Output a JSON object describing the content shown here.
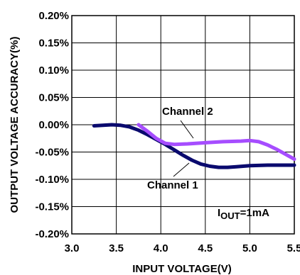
{
  "chart_data": {
    "type": "line",
    "xlabel": "INPUT VOLTAGE(V)",
    "ylabel": "OUTPUT VOLTAGE ACCURACY(%)",
    "xlim": [
      3.0,
      5.5
    ],
    "ylim": [
      -0.2,
      0.2
    ],
    "x_ticks": [
      "3.0",
      "3.5",
      "4.0",
      "4.5",
      "5.0",
      "5.5"
    ],
    "y_ticks": [
      "0.20%",
      "0.15%",
      "0.10%",
      "0.05%",
      "0.00%",
      "-0.05%",
      "-0.10%",
      "-0.15%",
      "-0.20%"
    ],
    "grid": true,
    "series": [
      {
        "name": "Channel 1",
        "color": "#0a0a6e",
        "x": [
          3.25,
          3.35,
          3.45,
          3.55,
          3.65,
          3.75,
          3.85,
          3.95,
          4.05,
          4.15,
          4.25,
          4.35,
          4.45,
          4.55,
          4.65,
          4.75,
          4.85,
          5.0,
          5.2,
          5.4,
          5.5
        ],
        "y": [
          -0.002,
          -0.001,
          0.0,
          -0.001,
          -0.004,
          -0.01,
          -0.018,
          -0.027,
          -0.036,
          -0.046,
          -0.056,
          -0.065,
          -0.072,
          -0.076,
          -0.078,
          -0.078,
          -0.077,
          -0.075,
          -0.074,
          -0.074,
          -0.074
        ]
      },
      {
        "name": "Channel 2",
        "color": "#a64dff",
        "x": [
          3.75,
          3.85,
          3.95,
          4.05,
          4.15,
          4.3,
          4.5,
          4.7,
          4.9,
          5.0,
          5.1,
          5.2,
          5.3,
          5.4,
          5.5
        ],
        "y": [
          0.0,
          -0.012,
          -0.025,
          -0.034,
          -0.036,
          -0.035,
          -0.033,
          -0.031,
          -0.03,
          -0.029,
          -0.031,
          -0.037,
          -0.045,
          -0.054,
          -0.063
        ]
      }
    ],
    "annotations": {
      "channel2_label": "Channel 2",
      "channel1_label": "Channel 1",
      "iout_main": "I",
      "iout_sub": "OUT",
      "iout_rest": "=1mA"
    }
  }
}
